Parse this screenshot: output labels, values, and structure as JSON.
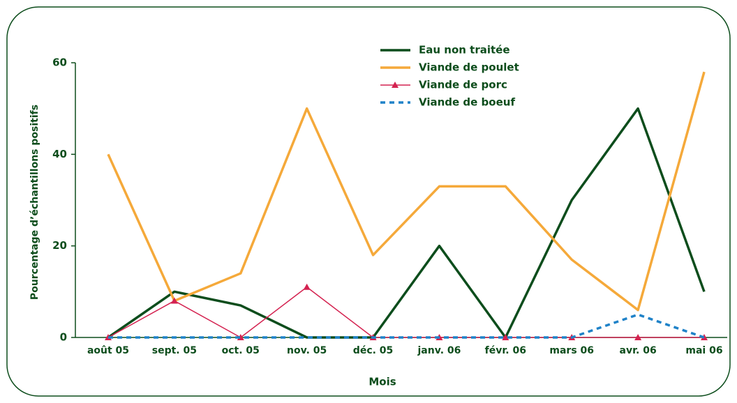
{
  "chart_data": {
    "type": "line",
    "xlabel": "Mois",
    "ylabel": "Pourcentage d’échantillons positifs",
    "categories": [
      "août 05",
      "sept. 05",
      "oct. 05",
      "nov. 05",
      "déc. 05",
      "janv. 06",
      "févr. 06",
      "mars 06",
      "avr. 06",
      "mai 06"
    ],
    "series": [
      {
        "name": "Eau non traitée",
        "color": "#0d4d1c",
        "dash": false,
        "marker": null,
        "values": [
          0,
          10,
          7,
          0,
          0,
          20,
          0,
          30,
          50,
          10
        ]
      },
      {
        "name": "Viande de poulet",
        "color": "#f5a93a",
        "dash": false,
        "marker": null,
        "values": [
          40,
          8,
          14,
          50,
          18,
          33,
          33,
          17,
          6,
          58
        ]
      },
      {
        "name": "Viande de porc",
        "color": "#d42250",
        "dash": false,
        "marker": "triangle",
        "values": [
          0,
          8,
          0,
          11,
          0,
          0,
          0,
          0,
          0,
          0
        ]
      },
      {
        "name": "Viande de boeuf",
        "color": "#1f82c8",
        "dash": true,
        "marker": null,
        "values": [
          0,
          0,
          0,
          0,
          0,
          0,
          0,
          0,
          5,
          0
        ]
      }
    ],
    "ylim": [
      0,
      60
    ],
    "yticks": [
      0,
      20,
      40,
      60
    ],
    "grid": false,
    "legend": "top"
  }
}
